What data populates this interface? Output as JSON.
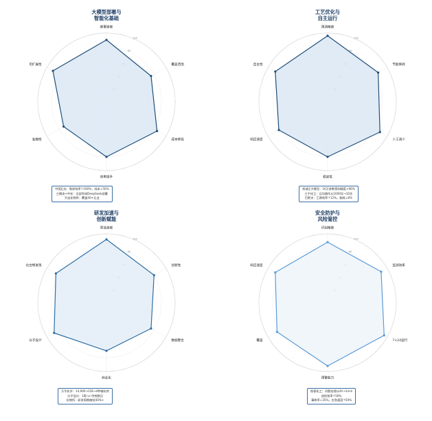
{
  "chart_data": [
    {
      "type": "radar",
      "title_lines": [
        "大模型部署与",
        "智能化基础"
      ],
      "axes": [
        "部署速度",
        "覆盖范围",
        "成本降低",
        "效率提升",
        "准确性",
        "可扩展性"
      ],
      "values": [
        90,
        75,
        85,
        80,
        72,
        90
      ],
      "rlim": [
        0,
        100
      ],
      "rticks": [
        20,
        40,
        60,
        80,
        100
      ],
      "color": "#1f4e79",
      "fill": "#dbe8f5",
      "notes": [
        "中国石化：勘探效率↑100%，成本↓50%",
        "三桶油+中化：全部完成DeepSeek部署",
        "大连化物所：覆盖40+企业"
      ]
    },
    {
      "type": "radar",
      "title_lines": [
        "工艺优化与",
        "自主运行"
      ],
      "axes": [
        "预测精度",
        "节能降耗",
        "人工减少",
        "稳定性",
        "响应速度",
        "自主性"
      ],
      "values": [
        96,
        85,
        88,
        80,
        82,
        88
      ],
      "rlim": [
        0,
        100
      ],
      "rticks": [
        20,
        40,
        60,
        80,
        100
      ],
      "color": "#1f4e79",
      "fill": "#dbe8f5",
      "notes": [
        "常减压大模型：16万参数预测精度>96%",
        "三宁化工：日均操作从1600次→10次",
        "巴斯夫：乙烯效率↑12%，能耗↓8%"
      ]
    },
    {
      "type": "radar",
      "title_lines": [
        "研发加速与",
        "创新赋能"
      ],
      "axes": [
        "筛选速度",
        "创新性",
        "数据整合",
        "商业化",
        "分子设计",
        "化合物发现"
      ],
      "values": [
        92,
        80,
        75,
        70,
        88,
        85
      ],
      "rlim": [
        0,
        100
      ],
      "rticks": [
        20,
        40,
        60,
        80,
        100
      ],
      "color": "#2e6da4",
      "fill": "#e3edf7",
      "notes": [
        "万华化学：14,000→156→4种催化剂",
        "分子设计：1周 vs 传统数月",
        "化物所：研发周期缩短40%+"
      ]
    },
    {
      "type": "radar",
      "title_lines": [
        "安全防护与",
        "风险管控"
      ],
      "axes": [
        "识别精度",
        "监测效率",
        "7×24运行",
        "预警能力",
        "覆盖",
        "响应速度"
      ],
      "values": [
        88,
        90,
        95,
        92,
        85,
        88
      ],
      "rlim": [
        0,
        100
      ],
      "rticks": [
        20,
        40,
        60,
        80,
        100
      ],
      "color": "#5b9bd5",
      "fill": "#eef4fa",
      "notes": [
        "振德化工：问题处理从4h→1min",
        "巡检效率↑50%",
        "事故率↓35%，应急速度↑50%"
      ]
    }
  ]
}
